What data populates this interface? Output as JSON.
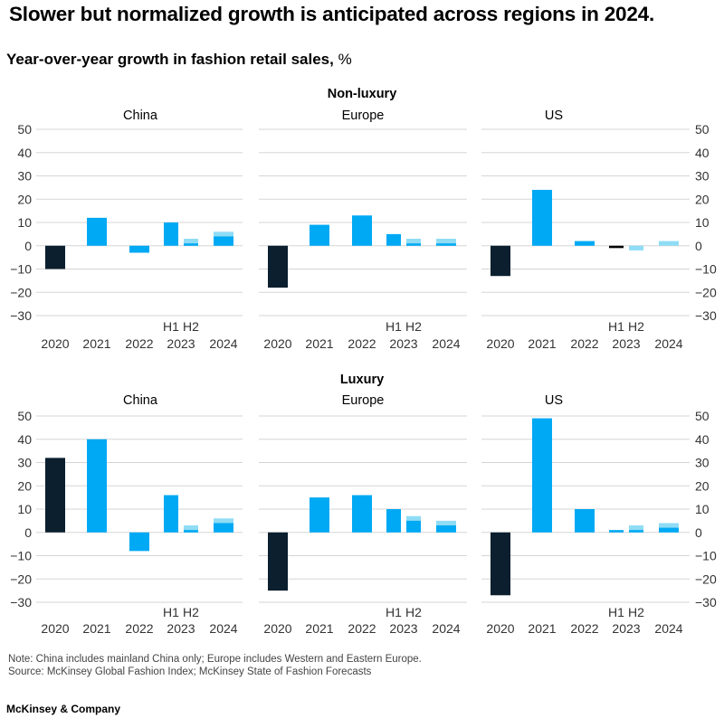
{
  "title": "Slower but normalized growth is anticipated across regions in 2024.",
  "subtitle": "Year-over-year growth in fashion retail sales,",
  "subtitle_unit": "%",
  "note": "Note: China includes mainland China only; Europe includes Western and Eastern Europe.",
  "source": "Source: McKinsey Global Fashion Index; McKinsey State of Fashion Forecasts",
  "brand": "McKinsey & Company",
  "colors": {
    "dark": "#0b1f2e",
    "bright": "#00a9f4",
    "light": "#8fdcf5",
    "grid": "#d5d5d5",
    "text": "#333333"
  },
  "chart_data": [
    {
      "type": "bar",
      "section": "Non-luxury",
      "ylim": [
        -30,
        50
      ],
      "yticks": [
        50,
        40,
        30,
        20,
        10,
        0,
        -10,
        -20,
        -30
      ],
      "categories": [
        "2020",
        "2021",
        "2022",
        "2023",
        "2024"
      ],
      "half_labels": [
        "H1",
        "H2"
      ],
      "legend": "none",
      "panels": [
        {
          "title": "China",
          "bars": [
            {
              "cat": "2020",
              "value": -10
            },
            {
              "cat": "2021",
              "value": 12
            },
            {
              "cat": "2022",
              "value": -3
            },
            {
              "cat": "2023",
              "half": "H1",
              "value": 10
            },
            {
              "cat": "2023",
              "half": "H2",
              "value": 1,
              "upper": 3
            },
            {
              "cat": "2024",
              "value": 4,
              "upper": 6
            }
          ]
        },
        {
          "title": "Europe",
          "bars": [
            {
              "cat": "2020",
              "value": -18
            },
            {
              "cat": "2021",
              "value": 9
            },
            {
              "cat": "2022",
              "value": 13
            },
            {
              "cat": "2023",
              "half": "H1",
              "value": 5
            },
            {
              "cat": "2023",
              "half": "H2",
              "value": 1,
              "upper": 3
            },
            {
              "cat": "2024",
              "value": 1,
              "upper": 3
            }
          ]
        },
        {
          "title": "US",
          "bars": [
            {
              "cat": "2020",
              "value": -13
            },
            {
              "cat": "2021",
              "value": 24
            },
            {
              "cat": "2022",
              "value": 2
            },
            {
              "cat": "2023",
              "half": "H1",
              "value": -1
            },
            {
              "cat": "2023",
              "half": "H2",
              "value": 0,
              "upper": -2
            },
            {
              "cat": "2024",
              "value": 0,
              "upper": 2
            }
          ]
        }
      ]
    },
    {
      "type": "bar",
      "section": "Luxury",
      "ylim": [
        -30,
        50
      ],
      "yticks": [
        50,
        40,
        30,
        20,
        10,
        0,
        -10,
        -20,
        -30
      ],
      "categories": [
        "2020",
        "2021",
        "2022",
        "2023",
        "2024"
      ],
      "half_labels": [
        "H1",
        "H2"
      ],
      "legend": "none",
      "panels": [
        {
          "title": "China",
          "bars": [
            {
              "cat": "2020",
              "value": 32
            },
            {
              "cat": "2021",
              "value": 40
            },
            {
              "cat": "2022",
              "value": -8
            },
            {
              "cat": "2023",
              "half": "H1",
              "value": 16
            },
            {
              "cat": "2023",
              "half": "H2",
              "value": 1,
              "upper": 3
            },
            {
              "cat": "2024",
              "value": 4,
              "upper": 6
            }
          ]
        },
        {
          "title": "Europe",
          "bars": [
            {
              "cat": "2020",
              "value": -25
            },
            {
              "cat": "2021",
              "value": 15
            },
            {
              "cat": "2022",
              "value": 16
            },
            {
              "cat": "2023",
              "half": "H1",
              "value": 10
            },
            {
              "cat": "2023",
              "half": "H2",
              "value": 5,
              "upper": 7
            },
            {
              "cat": "2024",
              "value": 3,
              "upper": 5
            }
          ]
        },
        {
          "title": "US",
          "bars": [
            {
              "cat": "2020",
              "value": -27
            },
            {
              "cat": "2021",
              "value": 49
            },
            {
              "cat": "2022",
              "value": 10
            },
            {
              "cat": "2023",
              "half": "H1",
              "value": 1
            },
            {
              "cat": "2023",
              "half": "H2",
              "value": 1,
              "upper": 3
            },
            {
              "cat": "2024",
              "value": 2,
              "upper": 4
            }
          ]
        }
      ]
    }
  ]
}
